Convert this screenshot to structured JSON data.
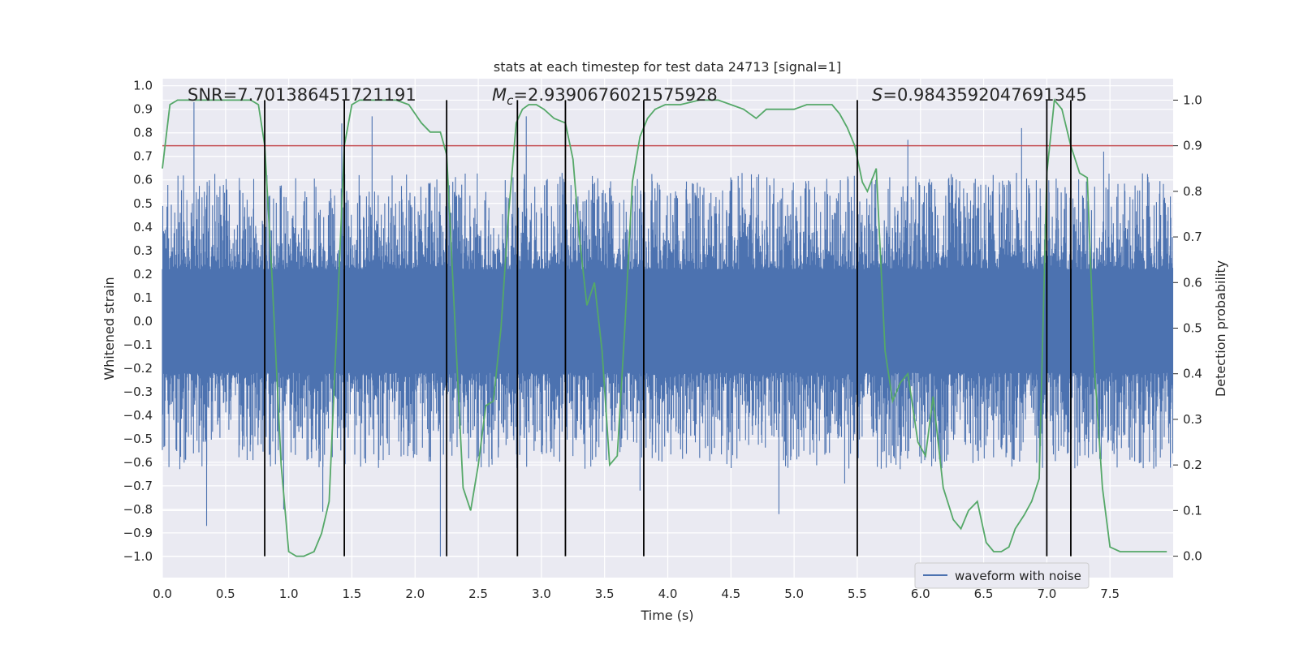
{
  "chart_data": {
    "type": "line",
    "title": "stats at each timestep for test data 24713 [signal=1]",
    "xlabel": "Time (s)",
    "ylabel": "Whitened strain",
    "y2label": "Detection probability",
    "xlim": [
      0.0,
      8.0
    ],
    "ylim": [
      -1.09,
      1.03
    ],
    "y2lim": [
      -0.047,
      1.047
    ],
    "xticks": [
      "0.0",
      "0.5",
      "1.0",
      "1.5",
      "2.0",
      "2.5",
      "3.0",
      "3.5",
      "4.0",
      "4.5",
      "5.0",
      "5.5",
      "6.0",
      "6.5",
      "7.0",
      "7.5"
    ],
    "yticks": [
      "1.0",
      "0.9",
      "0.8",
      "0.7",
      "0.6",
      "0.5",
      "0.4",
      "0.3",
      "0.2",
      "0.1",
      "0.0",
      "−0.1",
      "−0.2",
      "−0.3",
      "−0.4",
      "−0.5",
      "−0.6",
      "−0.7",
      "−0.8",
      "−0.9",
      "−1.0"
    ],
    "y2ticks": [
      "1.0",
      "0.9",
      "0.8",
      "0.7",
      "0.6",
      "0.5",
      "0.4",
      "0.3",
      "0.2",
      "0.1",
      "0.0"
    ],
    "grid": true,
    "legend": {
      "placement": "lower-right",
      "entries": [
        "waveform with noise"
      ]
    },
    "annotations": {
      "snr_label": "SNR=7.701386451721191",
      "mc_symbol": "M",
      "mc_sub": "c",
      "mc_value": "=2.9390676021575928",
      "s_symbol": "S",
      "s_value": "=0.9843592047691345"
    },
    "threshold": {
      "y2": 0.9,
      "color": "#c44e52"
    },
    "colors": {
      "waveform": "#4c72b0",
      "probability": "#55a868",
      "vlines": "#000000",
      "background": "#eaeaf2",
      "grid": "#ffffff"
    },
    "vlines_x": [
      0.81,
      1.44,
      2.25,
      2.81,
      3.19,
      3.81,
      5.5,
      7.0,
      7.19
    ],
    "series": [
      {
        "name": "waveform with noise",
        "envelope": {
          "x": [
            0.0,
            8.0
          ],
          "typical_range": [
            -0.43,
            0.43
          ],
          "spike_peaks": [
            {
              "x": 0.25,
              "y": 0.93
            },
            {
              "x": 1.42,
              "y": 0.84
            },
            {
              "x": 1.66,
              "y": 0.87
            },
            {
              "x": 2.88,
              "y": 0.87
            },
            {
              "x": 5.9,
              "y": 0.77
            },
            {
              "x": 6.8,
              "y": 0.82
            },
            {
              "x": 7.45,
              "y": 0.72
            },
            {
              "x": 0.35,
              "y": -0.87
            },
            {
              "x": 2.2,
              "y": -1.0
            },
            {
              "x": 0.96,
              "y": -0.8
            },
            {
              "x": 1.27,
              "y": -0.81
            },
            {
              "x": 4.88,
              "y": -0.82
            },
            {
              "x": 5.4,
              "y": -0.69
            },
            {
              "x": 3.78,
              "y": -0.72
            }
          ]
        }
      },
      {
        "name": "detection probability",
        "axis": "y2",
        "x": [
          0.0,
          0.06,
          0.12,
          0.2,
          0.3,
          0.45,
          0.6,
          0.7,
          0.76,
          0.81,
          0.87,
          0.94,
          1.0,
          1.06,
          1.12,
          1.2,
          1.26,
          1.32,
          1.38,
          1.44,
          1.5,
          1.56,
          1.65,
          1.75,
          1.85,
          1.95,
          2.0,
          2.05,
          2.12,
          2.2,
          2.25,
          2.3,
          2.38,
          2.44,
          2.5,
          2.56,
          2.62,
          2.68,
          2.74,
          2.8,
          2.85,
          2.9,
          2.96,
          3.02,
          3.1,
          3.19,
          3.25,
          3.3,
          3.36,
          3.42,
          3.48,
          3.54,
          3.6,
          3.66,
          3.72,
          3.78,
          3.84,
          3.9,
          3.98,
          4.1,
          4.25,
          4.4,
          4.5,
          4.6,
          4.65,
          4.7,
          4.78,
          4.88,
          5.0,
          5.1,
          5.2,
          5.3,
          5.36,
          5.42,
          5.48,
          5.54,
          5.58,
          5.65,
          5.72,
          5.78,
          5.84,
          5.9,
          5.98,
          6.04,
          6.1,
          6.18,
          6.26,
          6.32,
          6.38,
          6.45,
          6.52,
          6.58,
          6.64,
          6.7,
          6.75,
          6.82,
          6.88,
          6.94,
          7.0,
          7.06,
          7.12,
          7.19,
          7.26,
          7.32,
          7.38,
          7.44,
          7.5,
          7.58,
          7.7,
          7.8,
          7.9,
          7.95
        ],
        "y": [
          0.85,
          0.99,
          1.0,
          1.0,
          1.0,
          1.0,
          1.0,
          1.0,
          0.99,
          0.9,
          0.6,
          0.2,
          0.01,
          0.0,
          0.0,
          0.01,
          0.05,
          0.12,
          0.5,
          0.9,
          0.99,
          1.0,
          1.0,
          1.0,
          1.0,
          0.99,
          0.97,
          0.95,
          0.93,
          0.93,
          0.88,
          0.6,
          0.15,
          0.1,
          0.2,
          0.33,
          0.34,
          0.5,
          0.75,
          0.95,
          0.98,
          0.99,
          0.99,
          0.98,
          0.96,
          0.95,
          0.87,
          0.7,
          0.55,
          0.6,
          0.45,
          0.2,
          0.22,
          0.5,
          0.82,
          0.92,
          0.96,
          0.98,
          0.99,
          0.99,
          1.0,
          1.0,
          0.99,
          0.98,
          0.97,
          0.96,
          0.98,
          0.98,
          0.98,
          0.99,
          0.99,
          0.99,
          0.97,
          0.94,
          0.9,
          0.82,
          0.8,
          0.85,
          0.45,
          0.34,
          0.38,
          0.4,
          0.25,
          0.22,
          0.35,
          0.15,
          0.08,
          0.06,
          0.1,
          0.12,
          0.03,
          0.01,
          0.01,
          0.02,
          0.06,
          0.09,
          0.12,
          0.17,
          0.84,
          1.0,
          0.98,
          0.9,
          0.84,
          0.83,
          0.4,
          0.15,
          0.02,
          0.01,
          0.01,
          0.01,
          0.01,
          0.01
        ]
      }
    ]
  }
}
